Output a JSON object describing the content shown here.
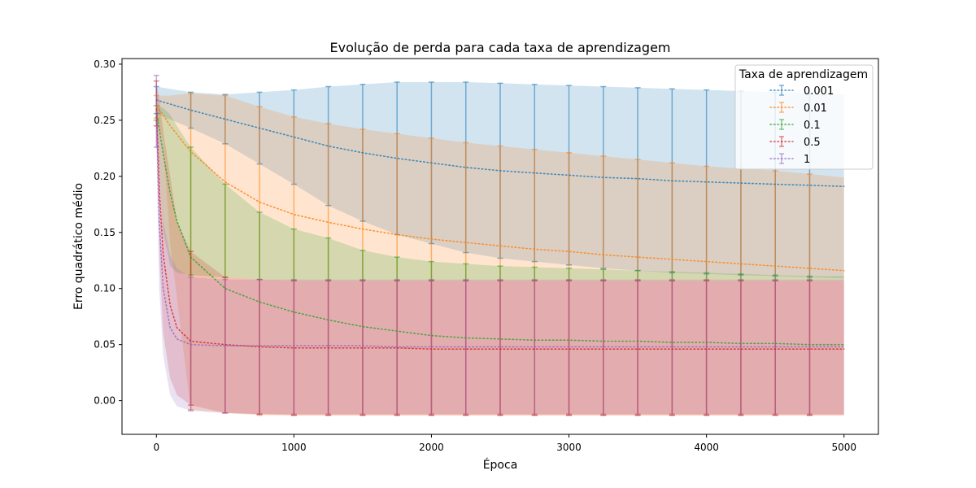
{
  "chart_data": {
    "type": "line",
    "title": "Evolução de perda para cada taxa de aprendizagem",
    "xlabel": "Época",
    "ylabel": "Erro quadrático médio",
    "xlim": [
      -250,
      5250
    ],
    "ylim": [
      -0.03,
      0.305
    ],
    "xticks": [
      0,
      1000,
      2000,
      3000,
      4000,
      5000
    ],
    "yticks": [
      0.0,
      0.05,
      0.1,
      0.15,
      0.2,
      0.25,
      0.3
    ],
    "ytick_labels": [
      "0.00",
      "0.05",
      "0.10",
      "0.15",
      "0.20",
      "0.25",
      "0.30"
    ],
    "grid": false,
    "legend": {
      "title": "Taxa de aprendizagem",
      "placement": "upper-right"
    },
    "errorbar_x": [
      0,
      250,
      500,
      750,
      1000,
      1250,
      1500,
      1750,
      2000,
      2250,
      2500,
      2750,
      3000,
      3250,
      3500,
      3750,
      4000,
      4250,
      4500,
      4750
    ],
    "series": [
      {
        "name": "0.001",
        "color": "#1f77b4",
        "x": [
          0,
          250,
          500,
          750,
          1000,
          1250,
          1500,
          1750,
          2000,
          2250,
          2500,
          2750,
          3000,
          3250,
          3500,
          3750,
          4000,
          4250,
          4500,
          4750,
          5000
        ],
        "mean": [
          0.268,
          0.259,
          0.251,
          0.243,
          0.235,
          0.227,
          0.221,
          0.216,
          0.212,
          0.208,
          0.205,
          0.203,
          0.201,
          0.199,
          0.198,
          0.196,
          0.195,
          0.194,
          0.193,
          0.192,
          0.191
        ],
        "upper": [
          0.28,
          0.275,
          0.273,
          0.275,
          0.277,
          0.28,
          0.282,
          0.284,
          0.284,
          0.284,
          0.283,
          0.282,
          0.281,
          0.28,
          0.279,
          0.278,
          0.277,
          0.276,
          0.275,
          0.274,
          0.273
        ],
        "lower": [
          0.256,
          0.243,
          0.229,
          0.211,
          0.193,
          0.174,
          0.16,
          0.148,
          0.14,
          0.132,
          0.127,
          0.124,
          0.121,
          0.118,
          0.116,
          0.114,
          0.113,
          0.112,
          0.111,
          0.11,
          0.109
        ]
      },
      {
        "name": "0.01",
        "color": "#ff7f0e",
        "x": [
          0,
          50,
          100,
          250,
          500,
          750,
          1000,
          1250,
          1500,
          1750,
          2000,
          2250,
          2500,
          2750,
          3000,
          3250,
          3500,
          3750,
          4000,
          4250,
          4500,
          4750,
          5000
        ],
        "mean": [
          0.262,
          0.255,
          0.245,
          0.222,
          0.195,
          0.177,
          0.166,
          0.159,
          0.153,
          0.148,
          0.144,
          0.141,
          0.138,
          0.135,
          0.133,
          0.13,
          0.128,
          0.126,
          0.124,
          0.122,
          0.12,
          0.118,
          0.116
        ],
        "upper": [
          0.272,
          0.272,
          0.272,
          0.274,
          0.272,
          0.262,
          0.253,
          0.247,
          0.242,
          0.238,
          0.234,
          0.23,
          0.227,
          0.224,
          0.221,
          0.218,
          0.215,
          0.212,
          0.209,
          0.207,
          0.205,
          0.202,
          0.199
        ],
        "lower": [
          0.252,
          0.23,
          0.14,
          -0.008,
          -0.011,
          -0.013,
          -0.013,
          -0.013,
          -0.013,
          -0.013,
          -0.013,
          -0.013,
          -0.013,
          -0.013,
          -0.013,
          -0.013,
          -0.013,
          -0.013,
          -0.013,
          -0.013,
          -0.013,
          -0.013,
          -0.013
        ]
      },
      {
        "name": "0.1",
        "color": "#2ca02c",
        "x": [
          0,
          50,
          100,
          150,
          250,
          500,
          750,
          1000,
          1250,
          1500,
          1750,
          2000,
          2250,
          2500,
          2750,
          3000,
          3250,
          3500,
          3750,
          4000,
          4250,
          4500,
          4750,
          5000
        ],
        "mean": [
          0.258,
          0.22,
          0.185,
          0.16,
          0.128,
          0.1,
          0.088,
          0.079,
          0.072,
          0.066,
          0.062,
          0.058,
          0.056,
          0.055,
          0.054,
          0.054,
          0.053,
          0.053,
          0.052,
          0.052,
          0.051,
          0.051,
          0.05,
          0.05
        ],
        "upper": [
          0.263,
          0.261,
          0.255,
          0.245,
          0.226,
          0.193,
          0.168,
          0.153,
          0.145,
          0.134,
          0.128,
          0.124,
          0.122,
          0.12,
          0.119,
          0.118,
          0.117,
          0.116,
          0.115,
          0.114,
          0.113,
          0.112,
          0.111,
          0.111
        ],
        "lower": [
          0.25,
          0.15,
          0.12,
          0.114,
          0.112,
          0.11,
          0.108,
          0.107,
          0.107,
          0.107,
          0.107,
          0.107,
          0.107,
          0.107,
          0.107,
          0.107,
          0.107,
          0.107,
          0.107,
          0.107,
          0.107,
          0.107,
          0.107,
          0.107
        ]
      },
      {
        "name": "0.5",
        "color": "#d62728",
        "x": [
          0,
          25,
          50,
          100,
          150,
          250,
          500,
          750,
          1000,
          1250,
          1500,
          1750,
          2000,
          2250,
          2500,
          2750,
          3000,
          3250,
          3500,
          3750,
          4000,
          4250,
          4500,
          4750,
          5000
        ],
        "mean": [
          0.26,
          0.18,
          0.13,
          0.085,
          0.065,
          0.053,
          0.05,
          0.048,
          0.047,
          0.047,
          0.047,
          0.047,
          0.046,
          0.046,
          0.046,
          0.046,
          0.046,
          0.046,
          0.046,
          0.046,
          0.046,
          0.046,
          0.046,
          0.046,
          0.046
        ],
        "upper": [
          0.285,
          0.265,
          0.24,
          0.2,
          0.16,
          0.133,
          0.11,
          0.108,
          0.107,
          0.107,
          0.107,
          0.107,
          0.107,
          0.107,
          0.107,
          0.107,
          0.107,
          0.107,
          0.107,
          0.107,
          0.107,
          0.107,
          0.107,
          0.107,
          0.107
        ],
        "lower": [
          0.245,
          0.12,
          0.06,
          0.02,
          0.005,
          -0.004,
          -0.011,
          -0.012,
          -0.013,
          -0.013,
          -0.013,
          -0.013,
          -0.013,
          -0.013,
          -0.013,
          -0.013,
          -0.013,
          -0.013,
          -0.013,
          -0.013,
          -0.013,
          -0.013,
          -0.013,
          -0.013,
          -0.013
        ]
      },
      {
        "name": "1",
        "color": "#9467bd",
        "x": [
          0,
          20,
          50,
          100,
          150,
          250,
          500,
          750,
          1000,
          1250,
          1500,
          1750,
          2000,
          2250,
          2500,
          2750,
          3000,
          3250,
          3500,
          3750,
          4000,
          4250,
          4500,
          4750,
          5000
        ],
        "mean": [
          0.258,
          0.16,
          0.1,
          0.065,
          0.055,
          0.05,
          0.049,
          0.049,
          0.049,
          0.049,
          0.049,
          0.048,
          0.048,
          0.048,
          0.048,
          0.048,
          0.048,
          0.048,
          0.048,
          0.048,
          0.048,
          0.048,
          0.048,
          0.048,
          0.048
        ],
        "upper": [
          0.29,
          0.2,
          0.16,
          0.13,
          0.118,
          0.11,
          0.108,
          0.108,
          0.108,
          0.108,
          0.108,
          0.108,
          0.108,
          0.108,
          0.108,
          0.108,
          0.108,
          0.108,
          0.108,
          0.108,
          0.108,
          0.108,
          0.108,
          0.108,
          0.108
        ],
        "lower": [
          0.226,
          0.1,
          0.04,
          0.005,
          -0.005,
          -0.009,
          -0.011,
          -0.012,
          -0.012,
          -0.012,
          -0.012,
          -0.012,
          -0.012,
          -0.012,
          -0.012,
          -0.012,
          -0.012,
          -0.012,
          -0.012,
          -0.012,
          -0.012,
          -0.012,
          -0.012,
          -0.012,
          -0.012
        ]
      }
    ]
  }
}
